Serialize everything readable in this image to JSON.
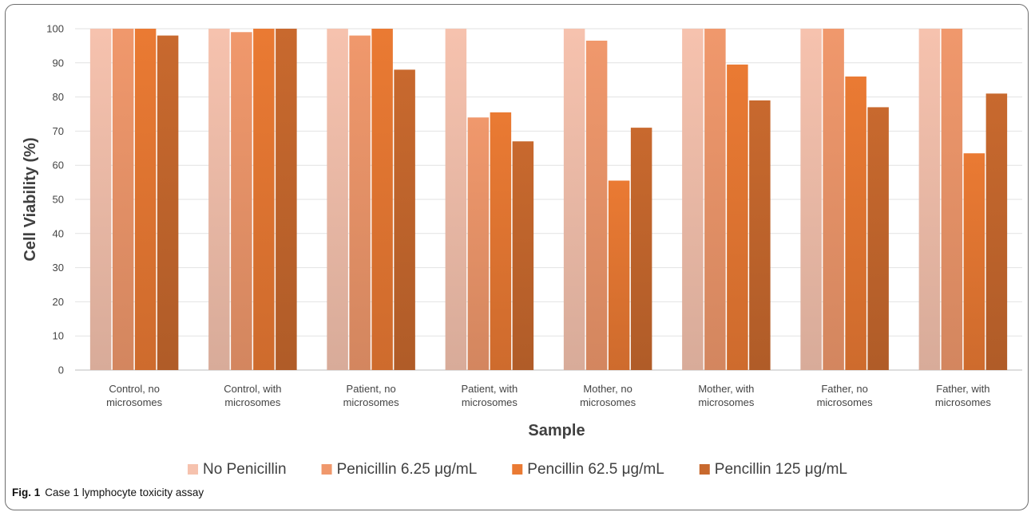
{
  "chart_data": {
    "type": "bar",
    "xlabel": "Sample",
    "ylabel": "Cell Viability (%)",
    "ylim": [
      0,
      100
    ],
    "yticks": [
      0,
      10,
      20,
      30,
      40,
      50,
      60,
      70,
      80,
      90,
      100
    ],
    "grid": true,
    "legend_position": "bottom",
    "categories": [
      [
        "Control, no",
        "microsomes"
      ],
      [
        "Control, with",
        "microsomes"
      ],
      [
        "Patient, no",
        "microsomes"
      ],
      [
        "Patient, with",
        "microsomes"
      ],
      [
        "Mother, no",
        "microsomes"
      ],
      [
        "Mother, with",
        "microsomes"
      ],
      [
        "Father, no",
        "microsomes"
      ],
      [
        "Father, with",
        "microsomes"
      ]
    ],
    "series": [
      {
        "name": "No Penicillin",
        "color": "#f6c2ae",
        "values": [
          100,
          100,
          100,
          100,
          100,
          100,
          100,
          100
        ]
      },
      {
        "name": "Penicillin 6.25  μg/mL",
        "color": "#f0986c",
        "values": [
          100,
          99,
          98,
          74,
          96.5,
          100,
          100,
          100
        ]
      },
      {
        "name": "Pencillin 62.5  μg/mL",
        "color": "#ea7a33",
        "values": [
          100,
          100,
          100,
          75.5,
          55.5,
          89.5,
          86,
          63.5
        ]
      },
      {
        "name": "Pencillin 125  μg/mL",
        "color": "#c8692e",
        "values": [
          98,
          100,
          88,
          67,
          71,
          79,
          77,
          81
        ]
      }
    ]
  },
  "caption": {
    "label": "Fig. 1",
    "text": "Case 1 lymphocyte toxicity assay"
  }
}
